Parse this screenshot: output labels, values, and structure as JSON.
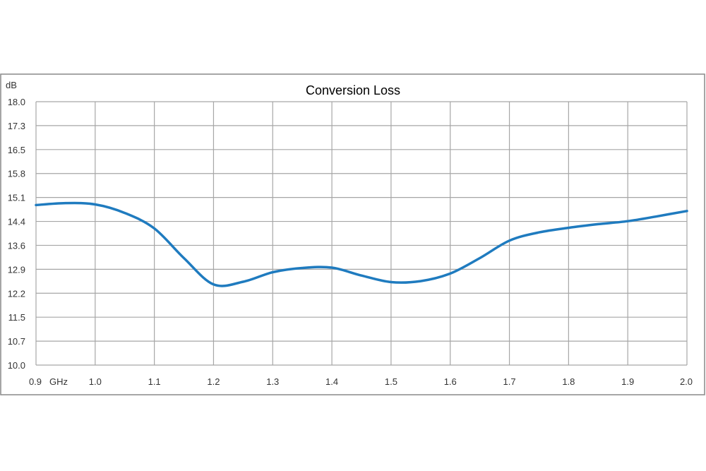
{
  "chart_data": {
    "type": "line",
    "title": "Conversion Loss",
    "ylabel": "dB",
    "xlabel": "GHz",
    "x_ticks": [
      "0.9",
      "1.0",
      "1.1",
      "1.2",
      "1.3",
      "1.4",
      "1.5",
      "1.6",
      "1.7",
      "1.8",
      "1.9",
      "2.0"
    ],
    "y_ticks": [
      "10.0",
      "10.7",
      "11.5",
      "12.2",
      "12.9",
      "13.6",
      "14.4",
      "15.1",
      "15.8",
      "16.5",
      "17.3",
      "18.0"
    ],
    "xlim": [
      0.9,
      2.0
    ],
    "ylim": [
      10.0,
      18.0
    ],
    "grid": true,
    "colors": {
      "line": "#1f7bbf",
      "grid": "#a6a6a6",
      "frame": "#888888"
    },
    "series": [
      {
        "x": [
          0.9,
          0.95,
          1.0,
          1.05,
          1.1,
          1.15,
          1.2,
          1.25,
          1.3,
          1.35,
          1.4,
          1.45,
          1.5,
          1.55,
          1.6,
          1.65,
          1.7,
          1.75,
          1.8,
          1.85,
          1.9,
          1.95,
          2.0
        ],
        "values": [
          14.86,
          14.92,
          14.88,
          14.62,
          14.15,
          13.25,
          12.45,
          12.53,
          12.82,
          12.95,
          12.96,
          12.72,
          12.52,
          12.55,
          12.78,
          13.25,
          13.78,
          14.03,
          14.17,
          14.28,
          14.37,
          14.52,
          14.68
        ]
      }
    ]
  }
}
